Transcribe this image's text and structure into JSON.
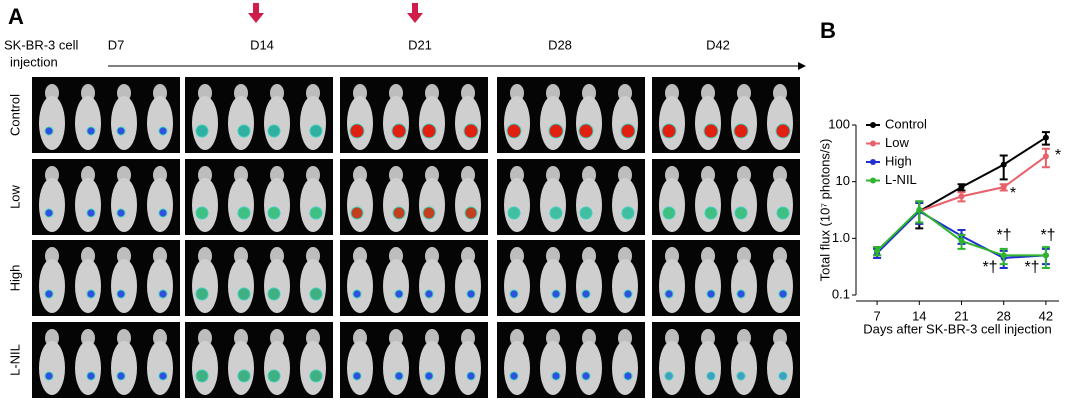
{
  "panel_a": {
    "label": "A",
    "injection_label": [
      "SK-BR-3 cell",
      "injection"
    ],
    "days": [
      "D7",
      "D14",
      "D21",
      "D28",
      "D42"
    ],
    "groups": [
      "Control",
      "Low",
      "High",
      "L-NIL"
    ]
  },
  "panel_b_label": "B",
  "chart_data": {
    "type": "line",
    "x_label": "Days after SK-BR-3 cell injection",
    "y_label": "Total flux (10⁷ photons/s)",
    "categories": [
      "7",
      "14",
      "21",
      "28",
      "42"
    ],
    "series": [
      {
        "name": "Control",
        "color": "#000000",
        "values": [
          0.6,
          3,
          8,
          20,
          60
        ],
        "errors": [
          0.1,
          1.5,
          1,
          9,
          15
        ]
      },
      {
        "name": "Low",
        "color": "#e8606a",
        "values": [
          0.6,
          3,
          5.5,
          8,
          28
        ],
        "errors": [
          0.1,
          1.2,
          1,
          1,
          10
        ]
      },
      {
        "name": "High",
        "color": "#1f2fd0",
        "values": [
          0.55,
          3,
          1.1,
          0.45,
          0.5
        ],
        "errors": [
          0.1,
          1.2,
          0.3,
          0.15,
          0.15
        ]
      },
      {
        "name": "L-NIL",
        "color": "#2db52d",
        "values": [
          0.6,
          3.2,
          0.9,
          0.5,
          0.5
        ],
        "errors": [
          0.1,
          1.3,
          0.25,
          0.15,
          0.2
        ]
      }
    ],
    "ylim": [
      0.1,
      100
    ],
    "yticks": [
      0.1,
      {
        "value": 1,
        "label": "1.0"
      },
      10,
      100
    ],
    "log_y": true,
    "annotations": [
      "*",
      "*",
      "*†",
      "*†",
      "*†",
      "*†"
    ]
  }
}
